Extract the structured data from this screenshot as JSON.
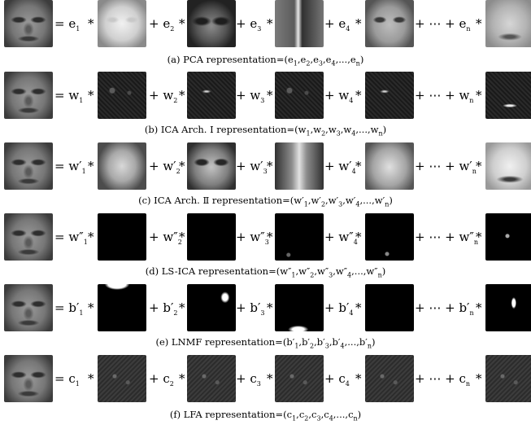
{
  "rows": [
    {
      "terms": [
        "= e",
        "* ",
        "+ e",
        "*",
        "+ e",
        "*",
        "+ e",
        "*",
        "+ ⋯ + e",
        "*"
      ],
      "subs": [
        "1",
        "2",
        "3",
        "4",
        "n"
      ],
      "caption_prefix": "(a) PCA representation=",
      "caption_vars": [
        "e",
        "e",
        "e",
        "e",
        "e"
      ],
      "caption_subs": [
        "1",
        "2",
        "3",
        "4",
        "n"
      ]
    },
    {
      "terms": [
        "= w",
        "*",
        "+ w",
        "*",
        "+ w",
        "*",
        "+ w",
        "*",
        "+ ⋯ + w",
        "*"
      ],
      "subs": [
        "1",
        "2",
        "3",
        "4",
        "n"
      ],
      "caption_prefix": "(b) ICA Arch. Ⅰ representation=",
      "caption_vars": [
        "w",
        "w",
        "w",
        "w",
        "w"
      ],
      "caption_subs": [
        "1",
        "2",
        "3",
        "4",
        "n"
      ]
    },
    {
      "terms": [
        "= w′",
        "*",
        "+ w′",
        "*",
        "+ w′",
        "*",
        "+ w′",
        "*",
        "+ ⋯ + w′",
        "*"
      ],
      "subs": [
        "1",
        "2",
        "3",
        "4",
        "n"
      ],
      "caption_prefix": "(c) ICA Arch. Ⅱ representation=",
      "caption_vars": [
        "w′",
        "w′",
        "w′",
        "w′",
        "w′"
      ],
      "caption_subs": [
        "1",
        "2",
        "3",
        "4",
        "n"
      ]
    },
    {
      "terms": [
        "= w″",
        "*",
        "+ w″",
        "*",
        "+ w″",
        "*",
        "+ w″",
        "*",
        "+ ⋯ + w″",
        "*"
      ],
      "subs": [
        "1",
        "2",
        "3",
        "4",
        "n"
      ],
      "caption_prefix": "(d) LS-ICA representation=",
      "caption_vars": [
        "w″",
        "w″",
        "w″",
        "w″",
        "w″"
      ],
      "caption_subs": [
        "1",
        "2",
        "3",
        "4",
        "n"
      ]
    },
    {
      "terms": [
        "= b′",
        "*",
        "+ b′",
        "*",
        "+ b′",
        "*",
        "+ b′",
        "*",
        "+ ⋯ + b′",
        "*"
      ],
      "subs": [
        "1",
        "2",
        "3",
        "4",
        "n"
      ],
      "caption_prefix": "(e) LNMF representation=",
      "caption_vars": [
        "b′",
        "b′",
        "b′",
        "b′",
        "b′"
      ],
      "caption_subs": [
        "1",
        "2",
        "3",
        "4",
        "n"
      ]
    },
    {
      "terms": [
        "= c",
        "*",
        "+ c",
        "*",
        "+ c",
        "*",
        "+ c",
        "*",
        "+ ⋯ + c",
        "*"
      ],
      "subs": [
        "1",
        "2",
        "3",
        "4",
        "n"
      ],
      "caption_prefix": "(f) LFA representation=",
      "caption_vars": [
        "c",
        "c",
        "c",
        "c",
        "c"
      ],
      "caption_subs": [
        "1",
        "2",
        "3",
        "4",
        "n"
      ]
    }
  ]
}
